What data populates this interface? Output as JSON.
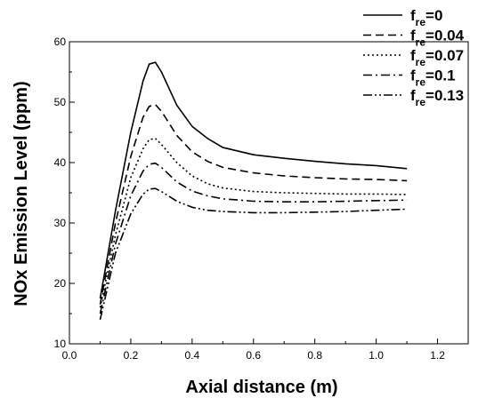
{
  "chart_data": {
    "type": "line",
    "title": "",
    "xlabel": "Axial distance (m)",
    "ylabel": "NOx Emission Level (ppm)",
    "xlim": [
      0.0,
      1.3
    ],
    "ylim": [
      10,
      60
    ],
    "x_ticks": [
      "0.0",
      "0.2",
      "0.4",
      "0.6",
      "0.8",
      "1.0",
      "1.2"
    ],
    "y_ticks": [
      "10",
      "20",
      "30",
      "40",
      "50",
      "60"
    ],
    "grid": false,
    "legend_position": "top-right",
    "series": [
      {
        "name": "f_re=0",
        "label_main": "f",
        "label_sub": "re",
        "label_value": "=0",
        "dash": "solid",
        "points": [
          [
            0.1,
            17.5
          ],
          [
            0.15,
            32
          ],
          [
            0.2,
            45
          ],
          [
            0.24,
            53.5
          ],
          [
            0.26,
            56.3
          ],
          [
            0.28,
            56.6
          ],
          [
            0.3,
            55
          ],
          [
            0.35,
            49.5
          ],
          [
            0.4,
            46
          ],
          [
            0.45,
            44
          ],
          [
            0.5,
            42.5
          ],
          [
            0.6,
            41.3
          ],
          [
            0.7,
            40.7
          ],
          [
            0.8,
            40.2
          ],
          [
            0.9,
            39.8
          ],
          [
            1.0,
            39.5
          ],
          [
            1.1,
            39
          ]
        ]
      },
      {
        "name": "f_re=0.04",
        "label_main": "f",
        "label_sub": "re",
        "label_value": "=0.04",
        "dash": "dash",
        "points": [
          [
            0.1,
            16.5
          ],
          [
            0.15,
            30
          ],
          [
            0.2,
            41
          ],
          [
            0.24,
            47.5
          ],
          [
            0.26,
            49.3
          ],
          [
            0.28,
            49.6
          ],
          [
            0.3,
            48.5
          ],
          [
            0.35,
            44.5
          ],
          [
            0.4,
            41.8
          ],
          [
            0.45,
            40.2
          ],
          [
            0.5,
            39.2
          ],
          [
            0.6,
            38.3
          ],
          [
            0.7,
            37.8
          ],
          [
            0.8,
            37.5
          ],
          [
            0.9,
            37.3
          ],
          [
            1.0,
            37.2
          ],
          [
            1.1,
            37
          ]
        ]
      },
      {
        "name": "f_re=0.07",
        "label_main": "f",
        "label_sub": "re",
        "label_value": "=0.07",
        "dash": "dot",
        "points": [
          [
            0.1,
            16
          ],
          [
            0.15,
            28
          ],
          [
            0.2,
            37.5
          ],
          [
            0.24,
            42.3
          ],
          [
            0.26,
            43.8
          ],
          [
            0.28,
            44
          ],
          [
            0.3,
            43
          ],
          [
            0.35,
            40
          ],
          [
            0.4,
            37.8
          ],
          [
            0.45,
            36.5
          ],
          [
            0.5,
            35.8
          ],
          [
            0.6,
            35.2
          ],
          [
            0.7,
            35
          ],
          [
            0.8,
            34.9
          ],
          [
            0.9,
            34.8
          ],
          [
            1.0,
            34.8
          ],
          [
            1.1,
            34.7
          ]
        ]
      },
      {
        "name": "f_re=0.1",
        "label_main": "f",
        "label_sub": "re",
        "label_value": "=0.1",
        "dash": "dashdot",
        "points": [
          [
            0.1,
            15
          ],
          [
            0.15,
            26.5
          ],
          [
            0.2,
            34.5
          ],
          [
            0.24,
            38.6
          ],
          [
            0.26,
            39.7
          ],
          [
            0.28,
            39.9
          ],
          [
            0.3,
            39.2
          ],
          [
            0.35,
            36.8
          ],
          [
            0.4,
            35.3
          ],
          [
            0.45,
            34.5
          ],
          [
            0.5,
            34
          ],
          [
            0.6,
            33.6
          ],
          [
            0.7,
            33.5
          ],
          [
            0.8,
            33.5
          ],
          [
            0.9,
            33.6
          ],
          [
            1.0,
            33.7
          ],
          [
            1.1,
            33.8
          ]
        ]
      },
      {
        "name": "f_re=0.13",
        "label_main": "f",
        "label_sub": "re",
        "label_value": "=0.13",
        "dash": "dashdotdot",
        "points": [
          [
            0.1,
            14
          ],
          [
            0.15,
            25
          ],
          [
            0.2,
            31.5
          ],
          [
            0.24,
            34.8
          ],
          [
            0.26,
            35.6
          ],
          [
            0.28,
            35.7
          ],
          [
            0.3,
            35.2
          ],
          [
            0.35,
            33.6
          ],
          [
            0.4,
            32.6
          ],
          [
            0.45,
            32.1
          ],
          [
            0.5,
            31.9
          ],
          [
            0.6,
            31.7
          ],
          [
            0.7,
            31.7
          ],
          [
            0.8,
            31.8
          ],
          [
            0.9,
            31.9
          ],
          [
            1.0,
            32.1
          ],
          [
            1.1,
            32.3
          ]
        ]
      }
    ]
  }
}
